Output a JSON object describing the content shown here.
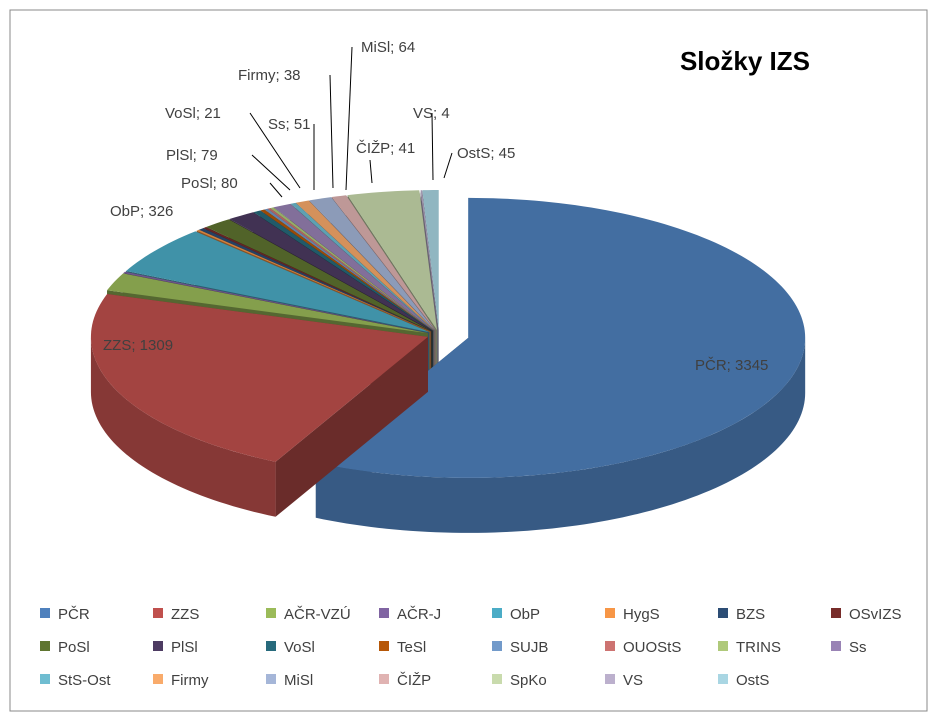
{
  "chart_data": {
    "type": "pie",
    "title": "Složky IZS",
    "categories": [
      "PČR",
      "ZZS",
      "AČR-VZÚ",
      "AČR-J",
      "ObP",
      "HygS",
      "BZS",
      "OSvIZS",
      "PoSl",
      "PlSl",
      "VoSl",
      "TeSl",
      "SUJB",
      "OUOStS",
      "TRINS",
      "Ss",
      "StS-Ost",
      "Firmy",
      "MiSl",
      "ČIŽP",
      "SpKo",
      "VS",
      "OstS"
    ],
    "values": [
      3345,
      1309,
      120,
      10,
      326,
      8,
      15,
      10,
      80,
      79,
      21,
      12,
      10,
      8,
      10,
      51,
      15,
      38,
      64,
      41,
      200,
      4,
      45
    ],
    "value_labels": [
      "PČR; 3345",
      "ZZS; 1309",
      null,
      null,
      "ObP; 326",
      null,
      null,
      null,
      "PoSl; 80",
      "PlSl; 79",
      "VoSl; 21",
      null,
      null,
      null,
      null,
      "Ss; 51",
      null,
      "Firmy; 38",
      "MiSl; 64",
      "ČIŽP; 41",
      null,
      "VS; 4",
      "OstS; 45"
    ],
    "colors": [
      "#4f81bd",
      "#c0504d",
      "#9bbb59",
      "#8064a2",
      "#4bacc6",
      "#f79646",
      "#2c4d75",
      "#772c2a",
      "#5f7530",
      "#4d3b62",
      "#276a7c",
      "#b65708",
      "#729aca",
      "#cd7371",
      "#afc97a",
      "#9983b5",
      "#6fbdd1",
      "#f9ab6b",
      "#a5b6d8",
      "#e0b3b2",
      "#c9dbad",
      "#bcb0cd",
      "#a9d6e3"
    ],
    "legend": "bottom"
  }
}
